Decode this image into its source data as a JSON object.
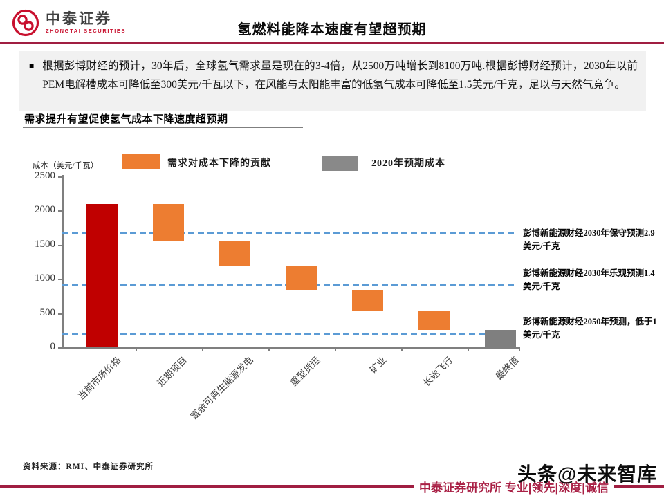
{
  "header": {
    "logo_cn": "中泰证券",
    "logo_en": "ZHONGTAI SECURITIES",
    "title": "氢燃料能降本速度有望超预期"
  },
  "summary": {
    "bullet": "■",
    "text": "根据彭博财经的预计，30年后，全球氢气需求量是现在的3-4倍，从2500万吨增长到8100万吨.根据彭博财经预计，2030年以前PEM电解槽成本可降低至300美元/千瓦以下，在风能与太阳能丰富的低氢气成本可降低至1.5美元/千克，足以与天然气竞争。"
  },
  "section_title": "需求提升有望促使氢气成本下降速度超预期",
  "chart_data": {
    "type": "bar",
    "subtype": "waterfall",
    "title": "需求提升有望促使氢气成本下降速度超预期",
    "ylabel": "成本（美元/千瓦）",
    "ylim": [
      0,
      2500
    ],
    "yticks": [
      0,
      500,
      1000,
      1500,
      2000,
      2500
    ],
    "grid": "off",
    "legend_position": "top",
    "categories": [
      "当前市场价格",
      "近期项目",
      "富余可再生能源发电",
      "重型货运",
      "矿业",
      "长途飞行",
      "最终值"
    ],
    "bars": [
      {
        "label": "当前市场价格",
        "from": 0,
        "to": 2100,
        "role": "start"
      },
      {
        "label": "近期项目",
        "from": 1560,
        "to": 2100,
        "role": "decrease"
      },
      {
        "label": "富余可再生能源发电",
        "from": 1180,
        "to": 1560,
        "role": "decrease"
      },
      {
        "label": "重型货运",
        "from": 840,
        "to": 1180,
        "role": "decrease"
      },
      {
        "label": "矿业",
        "from": 540,
        "to": 840,
        "role": "decrease"
      },
      {
        "label": "长途飞行",
        "from": 250,
        "to": 540,
        "role": "decrease"
      },
      {
        "label": "最终值",
        "from": 0,
        "to": 250,
        "role": "final"
      }
    ],
    "colors": {
      "start": "#C00000",
      "decrease": "#ED7D31",
      "final": "#7F7F7F"
    },
    "legend": [
      {
        "label": "需求对成本下降的贡献",
        "color": "#ED7D31"
      },
      {
        "label": "2020年预期成本",
        "color": "#898989"
      }
    ],
    "reference_lines": [
      {
        "value": 1670,
        "label": "彭博新能源财经2030年保守预测2.9美元/千克",
        "color": "#5B9BD5"
      },
      {
        "value": 915,
        "label": "彭博新能源财经2030年乐观预测1.4美元/千克",
        "color": "#5B9BD5"
      },
      {
        "value": 205,
        "label": "彭博新能源财经2050年预测，低于1美元/千克",
        "color": "#5B9BD5"
      }
    ]
  },
  "source": "资料来源：RMI、中泰证券研究所",
  "footer": {
    "slogan": "中泰证券研究所 专业|领先|深度|诚信",
    "watermark": "头条@未来智库"
  }
}
